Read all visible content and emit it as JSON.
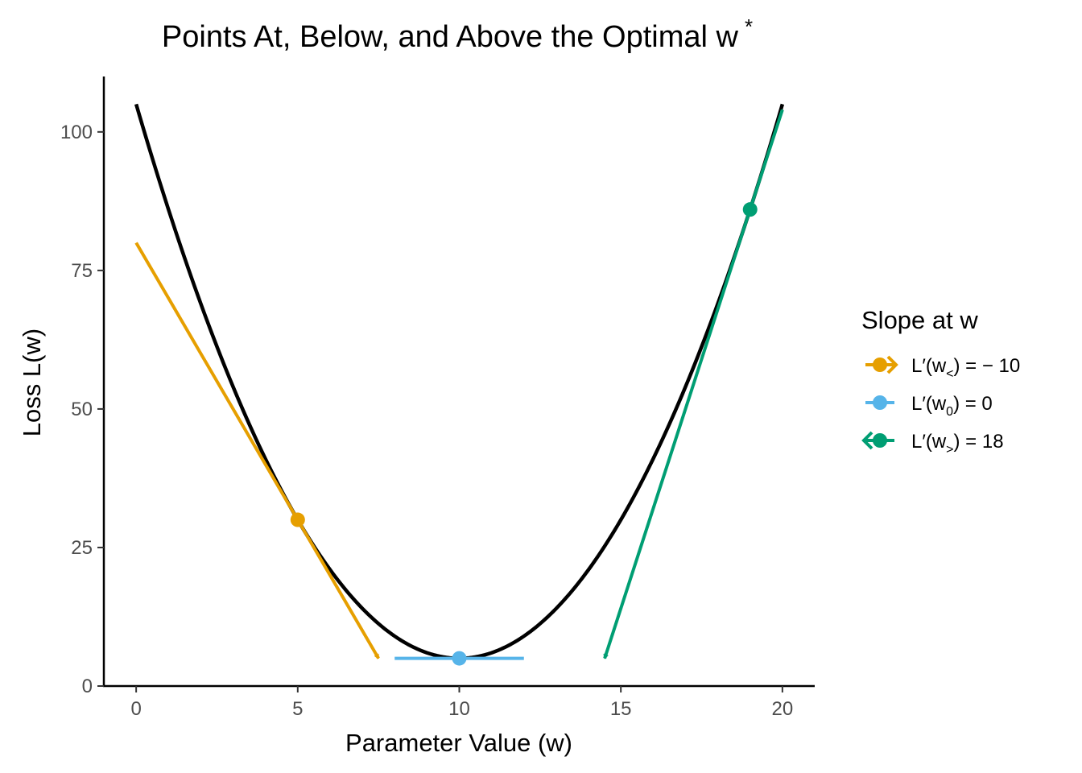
{
  "chart_data": {
    "type": "line",
    "title": "Points At, Below, and Above the Optimal w",
    "title_superscript": "*",
    "xlabel": "Parameter Value (w)",
    "ylabel": "Loss L(w)",
    "xlim": [
      -1,
      21
    ],
    "ylim": [
      0,
      110
    ],
    "x_ticks": [
      0,
      5,
      10,
      15,
      20
    ],
    "y_ticks": [
      0,
      25,
      50,
      75,
      100
    ],
    "grid": false,
    "legend_position": "right",
    "curve": {
      "formula": "L(w) = (w - 10)^2 + 5",
      "x_range": [
        0,
        20
      ],
      "color": "#000000"
    },
    "points": [
      {
        "x": 5,
        "y": 30,
        "slope": -10,
        "color": "#E69F00"
      },
      {
        "x": 10,
        "y": 5,
        "slope": 0,
        "color": "#56B4E9"
      },
      {
        "x": 19,
        "y": 86,
        "slope": 18,
        "color": "#009E73"
      }
    ],
    "tangent_segments": [
      {
        "x1": 0,
        "y1": 80,
        "x2": 7.5,
        "y2": 5,
        "arrow": "end",
        "color": "#E69F00"
      },
      {
        "x1": 8,
        "y1": 5,
        "x2": 12,
        "y2": 5,
        "arrow": "none",
        "color": "#56B4E9"
      },
      {
        "x1": 20,
        "y1": 104,
        "x2": 14.5,
        "y2": 5,
        "arrow": "end",
        "color": "#009E73"
      }
    ],
    "legend": {
      "title": "Slope at w",
      "entries": [
        {
          "label_main": "L′(w",
          "label_sub": "<",
          "label_tail": ") = − 10",
          "color": "#E69F00",
          "marker": "arrow-right"
        },
        {
          "label_main": "L′(w",
          "label_sub": "0",
          "label_tail": ") = 0",
          "color": "#56B4E9",
          "marker": "none"
        },
        {
          "label_main": "L′(w",
          "label_sub": ">",
          "label_tail": ") = 18",
          "color": "#009E73",
          "marker": "arrow-left"
        }
      ]
    }
  }
}
